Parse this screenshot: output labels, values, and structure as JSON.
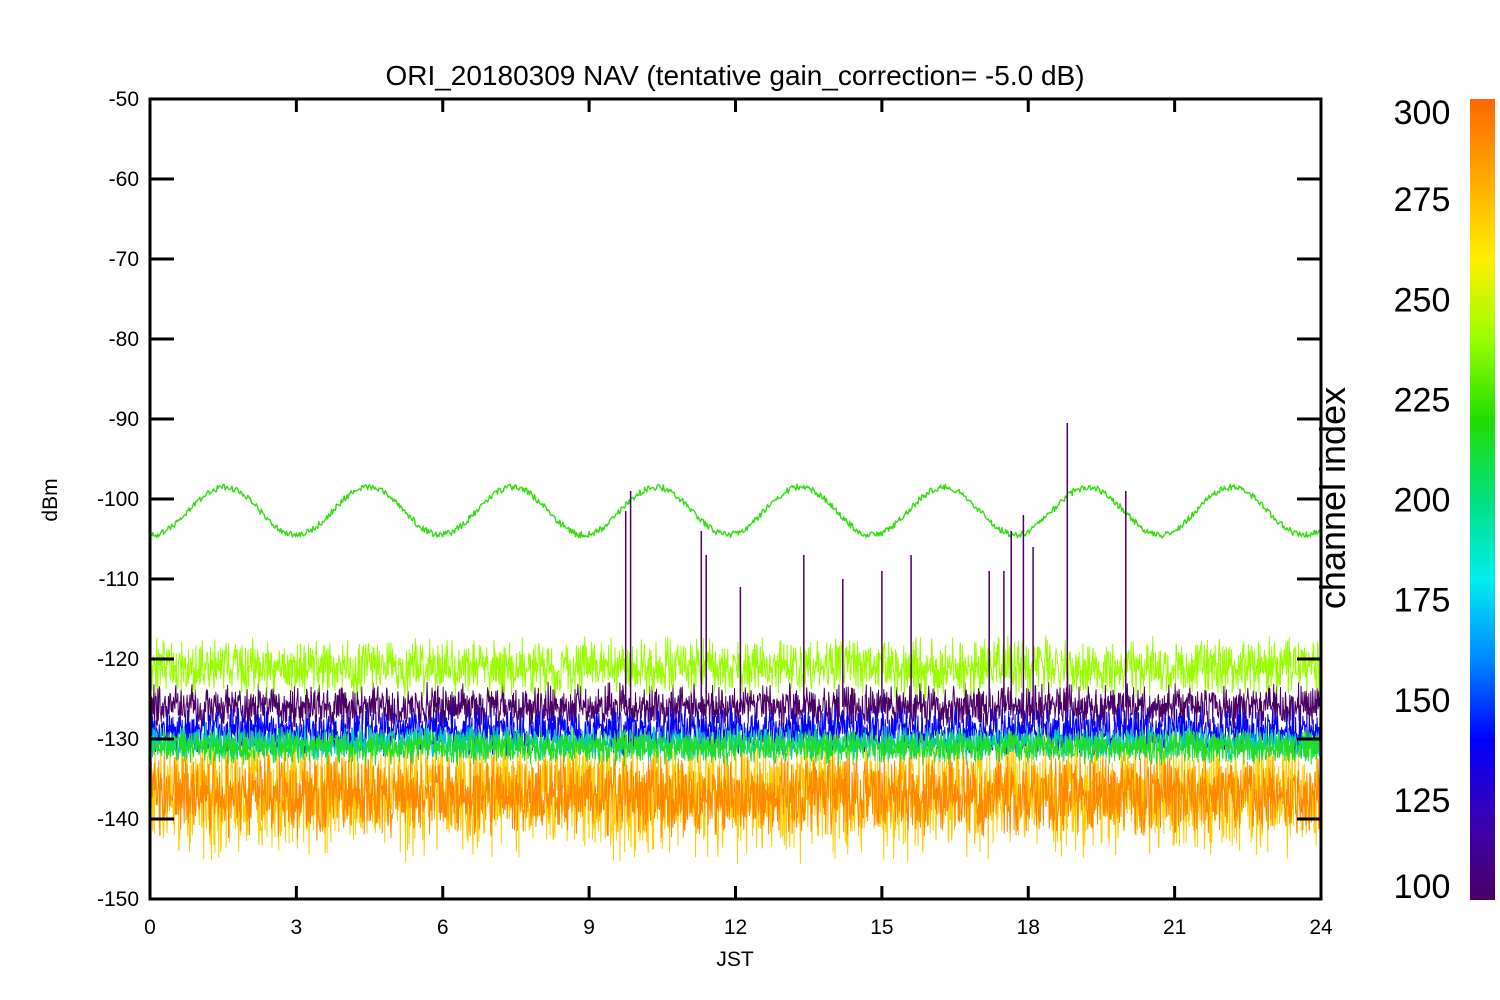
{
  "chart_data": {
    "type": "line",
    "title": "ORI_20180309 NAV (tentative gain_correction= -5.0 dB)",
    "xlabel": "JST",
    "ylabel": "dBm",
    "xlim": [
      0,
      24
    ],
    "ylim": [
      -150,
      -50
    ],
    "x_ticks": [
      "0",
      "3",
      "6",
      "9",
      "12",
      "15",
      "18",
      "21",
      "24"
    ],
    "y_ticks": [
      "-50",
      "-60",
      "-70",
      "-80",
      "-90",
      "-100",
      "-110",
      "-120",
      "-130",
      "-140",
      "-150"
    ],
    "grid": false,
    "colorbar": {
      "label": "channel index",
      "range": [
        100,
        300
      ],
      "ticks": [
        "300",
        "275",
        "250",
        "225",
        "200",
        "175",
        "150",
        "125",
        "100"
      ],
      "colormap": [
        "#4b0066",
        "#3a00b4",
        "#0000ff",
        "#0088ff",
        "#00eeee",
        "#00e080",
        "#22dd00",
        "#99ff00",
        "#ffee00",
        "#ffaa00",
        "#ff6600"
      ]
    },
    "series": [
      {
        "channel": 240,
        "color": "#33dd11",
        "level": -101.5,
        "oscillation_amplitude": 3,
        "oscillation_period_hours": 2.95,
        "noise": 0.4
      },
      {
        "channel": 262,
        "color": "#99ff00",
        "level": -121,
        "noise": 2.5
      },
      {
        "channel": 105,
        "color": "#4b0066",
        "level": -126,
        "noise": 2.0
      },
      {
        "channel": 140,
        "color": "#0000ff",
        "level": -129,
        "noise": 2.0
      },
      {
        "channel": 185,
        "color": "#00ccbb",
        "level": -130.5,
        "noise": 1.5
      },
      {
        "channel": 235,
        "color": "#22dd22",
        "level": -131,
        "noise": 1.5
      },
      {
        "channel": 278,
        "color": "#ffcc00",
        "level": -137,
        "noise": 5.5
      },
      {
        "channel": 295,
        "color": "#ff8800",
        "level": -137,
        "noise": 3.5
      }
    ],
    "spikes": [
      {
        "x": 9.75,
        "y_top": -101.5
      },
      {
        "x": 9.85,
        "y_top": -99
      },
      {
        "x": 11.3,
        "y_top": -104
      },
      {
        "x": 11.4,
        "y_top": -107
      },
      {
        "x": 12.1,
        "y_top": -111
      },
      {
        "x": 13.4,
        "y_top": -107
      },
      {
        "x": 14.2,
        "y_top": -110
      },
      {
        "x": 15.0,
        "y_top": -109
      },
      {
        "x": 15.6,
        "y_top": -107
      },
      {
        "x": 17.2,
        "y_top": -109
      },
      {
        "x": 17.5,
        "y_top": -109
      },
      {
        "x": 17.65,
        "y_top": -104
      },
      {
        "x": 17.9,
        "y_top": -102
      },
      {
        "x": 18.1,
        "y_top": -106
      },
      {
        "x": 18.8,
        "y_top": -90.5
      },
      {
        "x": 20.0,
        "y_top": -99
      }
    ]
  }
}
